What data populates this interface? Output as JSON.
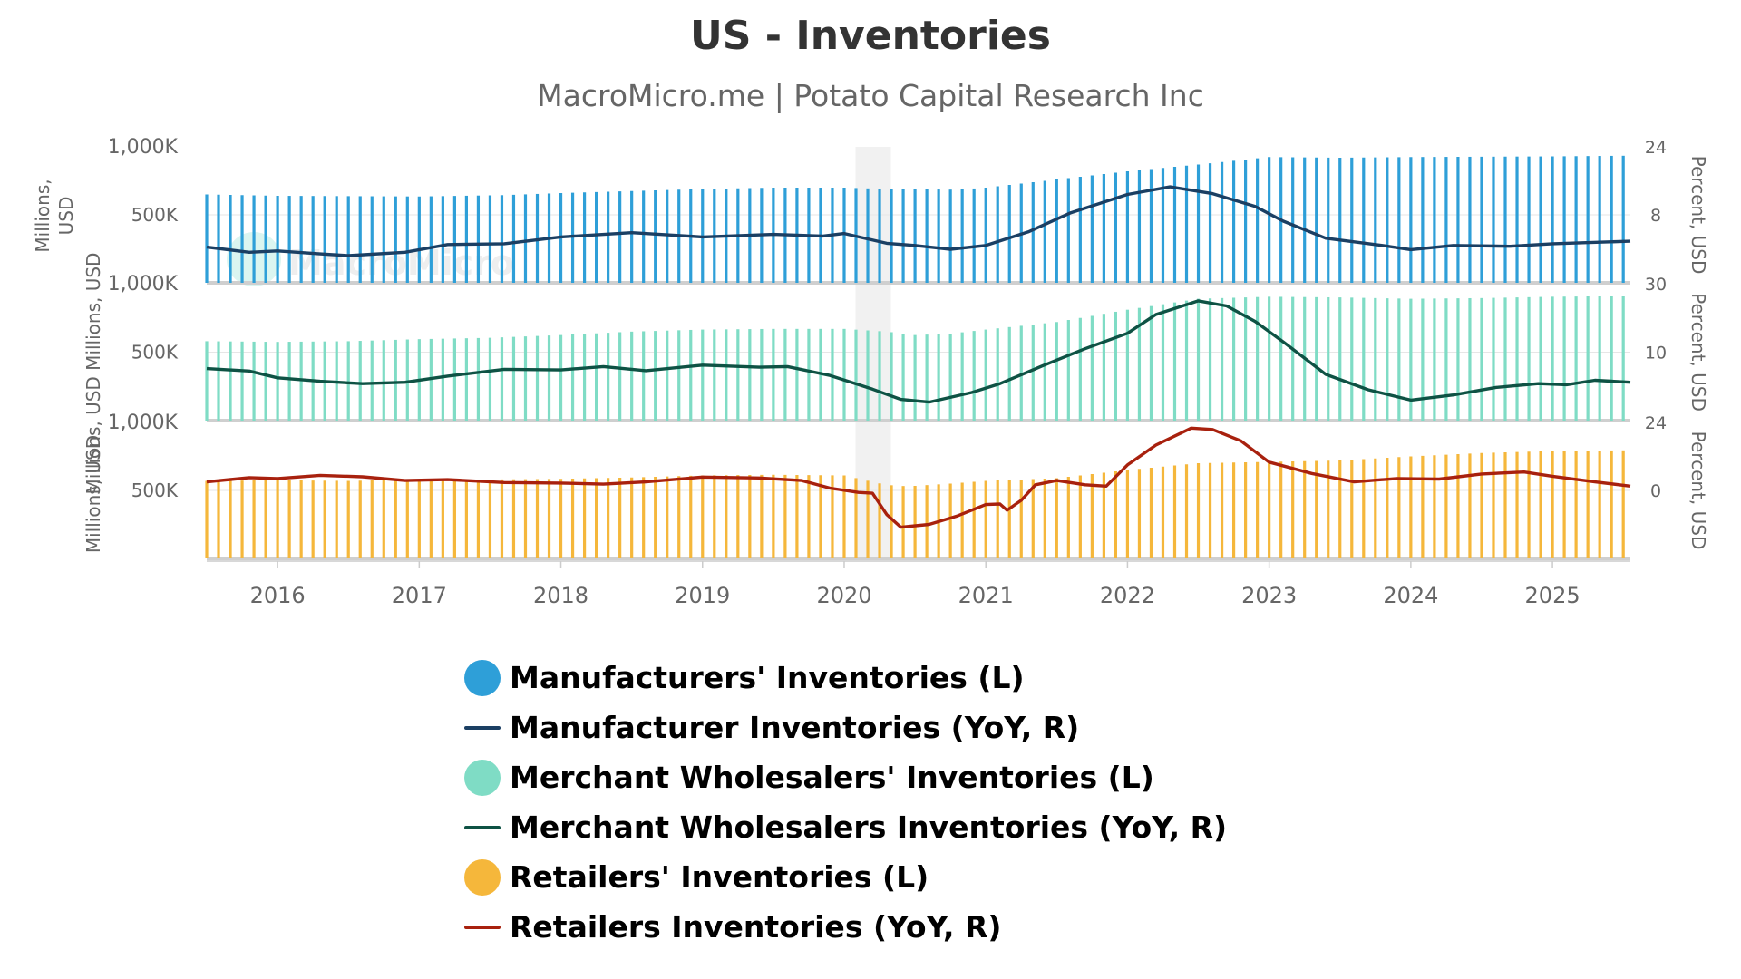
{
  "chart_data": {
    "title": "US - Inventories",
    "subtitle": "MacroMicro.me | Potato Capital Research Inc",
    "watermark": "MacroMicro",
    "x_start": 2015.5,
    "x_end": 2025.55,
    "x_ticks": [
      2016,
      2017,
      2018,
      2019,
      2020,
      2021,
      2022,
      2023,
      2024,
      2025
    ],
    "recession": [
      2020.08,
      2020.33
    ],
    "panels": [
      {
        "id": "manufacturers",
        "type": "bar+line",
        "left_axis": {
          "title": "Millions, USD",
          "min": 0,
          "max": 1000000,
          "ticks": [
            {
              "v": 1000000,
              "label": "1,000K"
            },
            {
              "v": 500000,
              "label": "500K"
            }
          ]
        },
        "right_axis": {
          "title": "Percent, USD",
          "min": -8,
          "max": 24,
          "ticks": [
            {
              "v": 24,
              "label": "24"
            },
            {
              "v": 8,
              "label": "8"
            }
          ]
        },
        "bar_series": {
          "name": "Manufacturers' Inventories (L)",
          "color": "#2e9fd8",
          "points": [
            [
              2015.5,
              650000
            ],
            [
              2016.0,
              640000
            ],
            [
              2017.0,
              635000
            ],
            [
              2017.6,
              645000
            ],
            [
              2018.0,
              660000
            ],
            [
              2019.0,
              690000
            ],
            [
              2019.5,
              700000
            ],
            [
              2020.0,
              700000
            ],
            [
              2020.3,
              690000
            ],
            [
              2020.8,
              685000
            ],
            [
              2021.0,
              700000
            ],
            [
              2021.5,
              760000
            ],
            [
              2022.0,
              820000
            ],
            [
              2022.5,
              870000
            ],
            [
              2023.0,
              925000
            ],
            [
              2023.5,
              920000
            ],
            [
              2024.0,
              925000
            ],
            [
              2025.0,
              930000
            ],
            [
              2025.55,
              935000
            ]
          ]
        },
        "line_series": {
          "name": "Manufacturer Inventories (YoY, R)",
          "color": "#1b3f63",
          "points": [
            [
              2015.5,
              0.4
            ],
            [
              2015.8,
              -0.8
            ],
            [
              2016.0,
              -0.5
            ],
            [
              2016.3,
              -1.2
            ],
            [
              2016.5,
              -1.6
            ],
            [
              2016.9,
              -0.8
            ],
            [
              2017.2,
              1.0
            ],
            [
              2017.6,
              1.2
            ],
            [
              2018.0,
              2.8
            ],
            [
              2018.5,
              3.8
            ],
            [
              2019.0,
              2.8
            ],
            [
              2019.5,
              3.4
            ],
            [
              2019.85,
              3.0
            ],
            [
              2020.0,
              3.6
            ],
            [
              2020.3,
              1.3
            ],
            [
              2020.5,
              0.8
            ],
            [
              2020.75,
              -0.1
            ],
            [
              2021.0,
              0.8
            ],
            [
              2021.3,
              4.0
            ],
            [
              2021.6,
              8.5
            ],
            [
              2022.0,
              12.8
            ],
            [
              2022.3,
              14.6
            ],
            [
              2022.6,
              13.0
            ],
            [
              2022.9,
              10.0
            ],
            [
              2023.1,
              6.5
            ],
            [
              2023.4,
              2.5
            ],
            [
              2023.8,
              0.8
            ],
            [
              2024.0,
              -0.2
            ],
            [
              2024.3,
              0.8
            ],
            [
              2024.7,
              0.6
            ],
            [
              2025.0,
              1.2
            ],
            [
              2025.55,
              1.8
            ]
          ]
        }
      },
      {
        "id": "wholesalers",
        "type": "bar+line",
        "left_axis": {
          "title": "Millions, USD",
          "min": 0,
          "max": 1000000,
          "ticks": [
            {
              "v": 1000000,
              "label": "1,000K"
            },
            {
              "v": 500000,
              "label": "500K"
            }
          ]
        },
        "right_axis": {
          "title": "Percent, USD",
          "min": -10,
          "max": 30,
          "ticks": [
            {
              "v": 30,
              "label": "30"
            },
            {
              "v": 10,
              "label": "10"
            }
          ]
        },
        "bar_series": {
          "name": "Merchant Wholesalers' Inventories (L)",
          "color": "#7fdcc5",
          "points": [
            [
              2015.5,
              580000
            ],
            [
              2016.0,
              575000
            ],
            [
              2016.5,
              580000
            ],
            [
              2017.0,
              595000
            ],
            [
              2017.5,
              605000
            ],
            [
              2018.0,
              625000
            ],
            [
              2018.5,
              650000
            ],
            [
              2019.0,
              665000
            ],
            [
              2019.5,
              670000
            ],
            [
              2020.0,
              670000
            ],
            [
              2020.3,
              650000
            ],
            [
              2020.5,
              625000
            ],
            [
              2020.75,
              635000
            ],
            [
              2021.0,
              665000
            ],
            [
              2021.5,
              720000
            ],
            [
              2022.0,
              810000
            ],
            [
              2022.5,
              890000
            ],
            [
              2023.0,
              905000
            ],
            [
              2023.5,
              900000
            ],
            [
              2024.0,
              890000
            ],
            [
              2024.5,
              895000
            ],
            [
              2025.0,
              905000
            ],
            [
              2025.55,
              910000
            ]
          ]
        },
        "line_series": {
          "name": "Merchant Wholesalers Inventories (YoY, R)",
          "color": "#0e5244",
          "points": [
            [
              2015.5,
              5.2
            ],
            [
              2015.8,
              4.5
            ],
            [
              2016.0,
              2.5
            ],
            [
              2016.3,
              1.5
            ],
            [
              2016.6,
              0.8
            ],
            [
              2016.9,
              1.2
            ],
            [
              2017.2,
              3.0
            ],
            [
              2017.6,
              5.0
            ],
            [
              2018.0,
              4.8
            ],
            [
              2018.3,
              5.8
            ],
            [
              2018.6,
              4.6
            ],
            [
              2019.0,
              6.2
            ],
            [
              2019.4,
              5.6
            ],
            [
              2019.6,
              5.8
            ],
            [
              2019.9,
              3.2
            ],
            [
              2020.2,
              -0.8
            ],
            [
              2020.4,
              -3.8
            ],
            [
              2020.6,
              -4.6
            ],
            [
              2020.9,
              -1.8
            ],
            [
              2021.1,
              0.8
            ],
            [
              2021.4,
              6.0
            ],
            [
              2021.7,
              11.0
            ],
            [
              2022.0,
              15.5
            ],
            [
              2022.2,
              21.0
            ],
            [
              2022.5,
              25.0
            ],
            [
              2022.7,
              23.5
            ],
            [
              2022.9,
              19.0
            ],
            [
              2023.1,
              13.0
            ],
            [
              2023.4,
              3.5
            ],
            [
              2023.7,
              -1.0
            ],
            [
              2024.0,
              -4.0
            ],
            [
              2024.3,
              -2.5
            ],
            [
              2024.6,
              -0.3
            ],
            [
              2024.9,
              0.8
            ],
            [
              2025.1,
              0.5
            ],
            [
              2025.3,
              1.8
            ],
            [
              2025.55,
              1.2
            ]
          ]
        },
        "extra_axis_title": "Millions, USD"
      },
      {
        "id": "retailers",
        "type": "bar+line",
        "left_axis": {
          "title": "Millions, USD",
          "min": 0,
          "max": 1000000,
          "ticks": [
            {
              "v": 1000000,
              "label": "1,000K"
            },
            {
              "v": 500000,
              "label": "500K"
            }
          ]
        },
        "right_axis": {
          "title": "Percent, USD",
          "min": -24,
          "max": 24,
          "ticks": [
            {
              "v": 24,
              "label": "24"
            },
            {
              "v": 0,
              "label": "0"
            }
          ]
        },
        "bar_series": {
          "name": "Retailers' Inventories (L)",
          "color": "#f5b73b",
          "points": [
            [
              2015.5,
              570000
            ],
            [
              2016.0,
              575000
            ],
            [
              2016.5,
              570000
            ],
            [
              2017.0,
              580000
            ],
            [
              2017.5,
              580000
            ],
            [
              2018.0,
              585000
            ],
            [
              2018.5,
              595000
            ],
            [
              2019.0,
              610000
            ],
            [
              2019.5,
              615000
            ],
            [
              2020.0,
              610000
            ],
            [
              2020.3,
              540000
            ],
            [
              2020.45,
              530000
            ],
            [
              2020.75,
              550000
            ],
            [
              2021.0,
              570000
            ],
            [
              2021.5,
              590000
            ],
            [
              2022.0,
              650000
            ],
            [
              2022.5,
              700000
            ],
            [
              2023.0,
              710000
            ],
            [
              2023.5,
              720000
            ],
            [
              2024.0,
              750000
            ],
            [
              2024.5,
              775000
            ],
            [
              2025.0,
              790000
            ],
            [
              2025.55,
              795000
            ]
          ]
        },
        "line_series": {
          "name": "Retailers Inventories (YoY, R)",
          "color": "#a8210e",
          "points": [
            [
              2015.5,
              3.0
            ],
            [
              2015.8,
              4.5
            ],
            [
              2016.0,
              4.2
            ],
            [
              2016.3,
              5.3
            ],
            [
              2016.6,
              4.8
            ],
            [
              2016.9,
              3.5
            ],
            [
              2017.2,
              3.8
            ],
            [
              2017.6,
              2.8
            ],
            [
              2018.0,
              2.6
            ],
            [
              2018.3,
              2.2
            ],
            [
              2018.6,
              3.0
            ],
            [
              2019.0,
              4.7
            ],
            [
              2019.4,
              4.4
            ],
            [
              2019.7,
              3.5
            ],
            [
              2019.9,
              0.8
            ],
            [
              2020.1,
              -0.7
            ],
            [
              2020.2,
              -1.0
            ],
            [
              2020.3,
              -8.5
            ],
            [
              2020.4,
              -13.0
            ],
            [
              2020.6,
              -12.0
            ],
            [
              2020.8,
              -9.0
            ],
            [
              2021.0,
              -5.0
            ],
            [
              2021.1,
              -4.8
            ],
            [
              2021.15,
              -7.0
            ],
            [
              2021.25,
              -3.5
            ],
            [
              2021.35,
              2.0
            ],
            [
              2021.5,
              3.5
            ],
            [
              2021.7,
              2.0
            ],
            [
              2021.85,
              1.5
            ],
            [
              2022.0,
              9.0
            ],
            [
              2022.2,
              16.0
            ],
            [
              2022.45,
              22.0
            ],
            [
              2022.6,
              21.5
            ],
            [
              2022.8,
              17.5
            ],
            [
              2023.0,
              10.0
            ],
            [
              2023.3,
              6.0
            ],
            [
              2023.6,
              3.0
            ],
            [
              2023.9,
              4.2
            ],
            [
              2024.2,
              4.0
            ],
            [
              2024.5,
              5.8
            ],
            [
              2024.8,
              6.5
            ],
            [
              2025.0,
              5.0
            ],
            [
              2025.3,
              3.0
            ],
            [
              2025.55,
              1.5
            ]
          ]
        }
      }
    ]
  },
  "legend": [
    {
      "label": "Manufacturers' Inventories (L)",
      "color": "#2e9fd8",
      "kind": "dot"
    },
    {
      "label": "Manufacturer Inventories (YoY, R)",
      "color": "#1b3f63",
      "kind": "line"
    },
    {
      "label": "Merchant Wholesalers' Inventories (L)",
      "color": "#7fdcc5",
      "kind": "dot"
    },
    {
      "label": "Merchant Wholesalers Inventories (YoY, R)",
      "color": "#0e5244",
      "kind": "line"
    },
    {
      "label": "Retailers' Inventories (L)",
      "color": "#f5b73b",
      "kind": "dot"
    },
    {
      "label": "Retailers Inventories (YoY, R)",
      "color": "#a8210e",
      "kind": "line"
    }
  ]
}
